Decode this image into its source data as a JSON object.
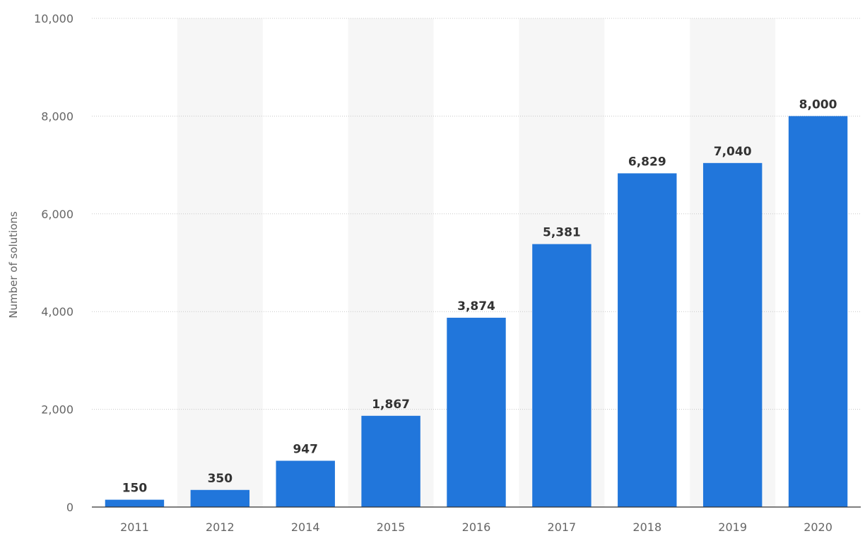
{
  "chart_data": {
    "type": "bar",
    "categories": [
      "2011",
      "2012",
      "2014",
      "2015",
      "2016",
      "2017",
      "2018",
      "2019",
      "2020"
    ],
    "values": [
      150,
      350,
      947,
      1867,
      3874,
      5381,
      6829,
      7040,
      8000
    ],
    "value_labels": [
      "150",
      "350",
      "947",
      "1,867",
      "3,874",
      "5,381",
      "6,829",
      "7,040",
      "8,000"
    ],
    "ylabel": "Number of solutions",
    "xlabel": "",
    "ylim": [
      0,
      10000
    ],
    "yticks": [
      0,
      2000,
      4000,
      6000,
      8000,
      10000
    ],
    "ytick_labels": [
      "0",
      "2,000",
      "4,000",
      "6,000",
      "8,000",
      "10,000"
    ],
    "bar_color": "#2176db",
    "band_color": "#f6f6f6",
    "grid": true,
    "legend": "none"
  }
}
